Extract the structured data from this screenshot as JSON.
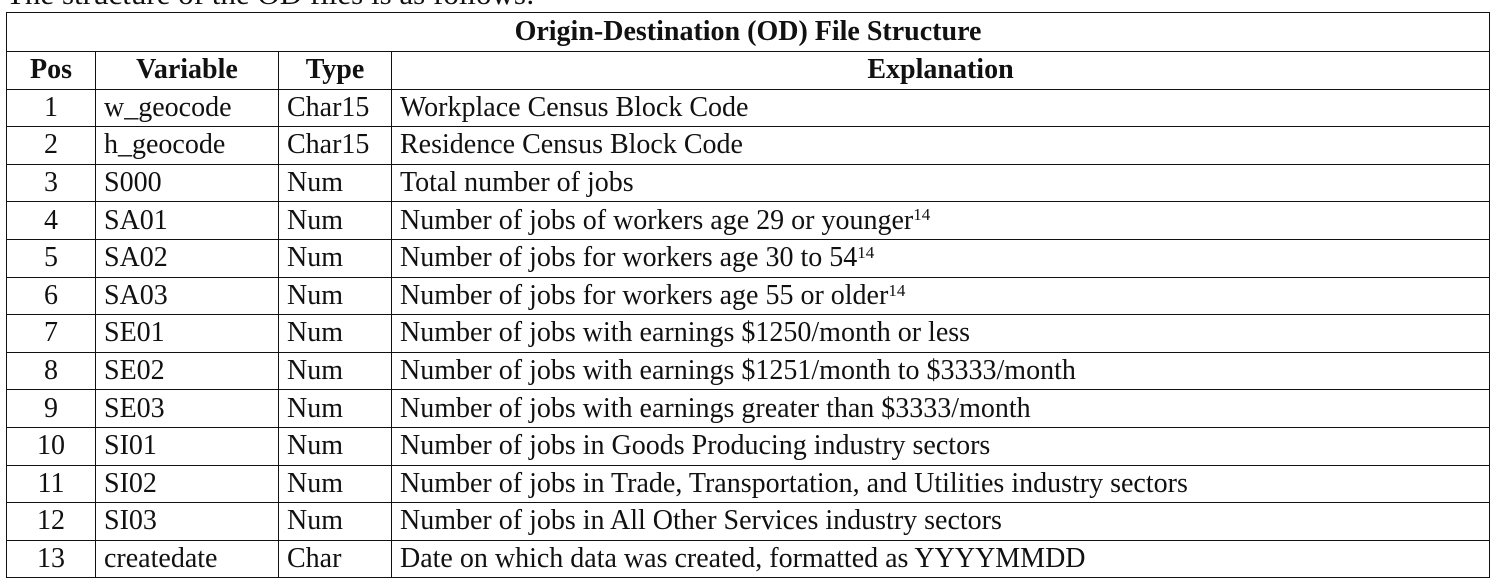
{
  "intro_text": "The structure of the OD files is as follows:",
  "table": {
    "title": "Origin-Destination (OD) File Structure",
    "headers": {
      "pos": "Pos",
      "variable": "Variable",
      "type": "Type",
      "explanation": "Explanation"
    },
    "rows": [
      {
        "pos": "1",
        "variable": "w_geocode",
        "type": "Char15",
        "explanation": "Workplace Census Block Code",
        "footnote": ""
      },
      {
        "pos": "2",
        "variable": "h_geocode",
        "type": "Char15",
        "explanation": "Residence Census Block Code",
        "footnote": ""
      },
      {
        "pos": "3",
        "variable": "S000",
        "type": "Num",
        "explanation": "Total number of jobs",
        "footnote": ""
      },
      {
        "pos": "4",
        "variable": "SA01",
        "type": "Num",
        "explanation": "Number of jobs of workers age 29 or younger",
        "footnote": "14"
      },
      {
        "pos": "5",
        "variable": "SA02",
        "type": "Num",
        "explanation": "Number of jobs for workers age 30 to 54",
        "footnote": "14"
      },
      {
        "pos": "6",
        "variable": "SA03",
        "type": "Num",
        "explanation": "Number of jobs for workers age 55 or older",
        "footnote": "14"
      },
      {
        "pos": "7",
        "variable": "SE01",
        "type": "Num",
        "explanation": "Number of jobs with earnings $1250/month or less",
        "footnote": ""
      },
      {
        "pos": "8",
        "variable": "SE02",
        "type": "Num",
        "explanation": "Number of jobs with earnings $1251/month to $3333/month",
        "footnote": ""
      },
      {
        "pos": "9",
        "variable": "SE03",
        "type": "Num",
        "explanation": "Number of jobs with earnings greater than $3333/month",
        "footnote": ""
      },
      {
        "pos": "10",
        "variable": "SI01",
        "type": "Num",
        "explanation": "Number of jobs in Goods Producing industry sectors",
        "footnote": ""
      },
      {
        "pos": "11",
        "variable": "SI02",
        "type": "Num",
        "explanation": "Number of jobs in Trade, Transportation, and Utilities industry sectors",
        "footnote": ""
      },
      {
        "pos": "12",
        "variable": "SI03",
        "type": "Num",
        "explanation": "Number of jobs in All Other Services industry sectors",
        "footnote": ""
      },
      {
        "pos": "13",
        "variable": "createdate",
        "type": "Char",
        "explanation": "Date on which data was created, formatted as YYYYMMDD",
        "footnote": ""
      }
    ]
  }
}
